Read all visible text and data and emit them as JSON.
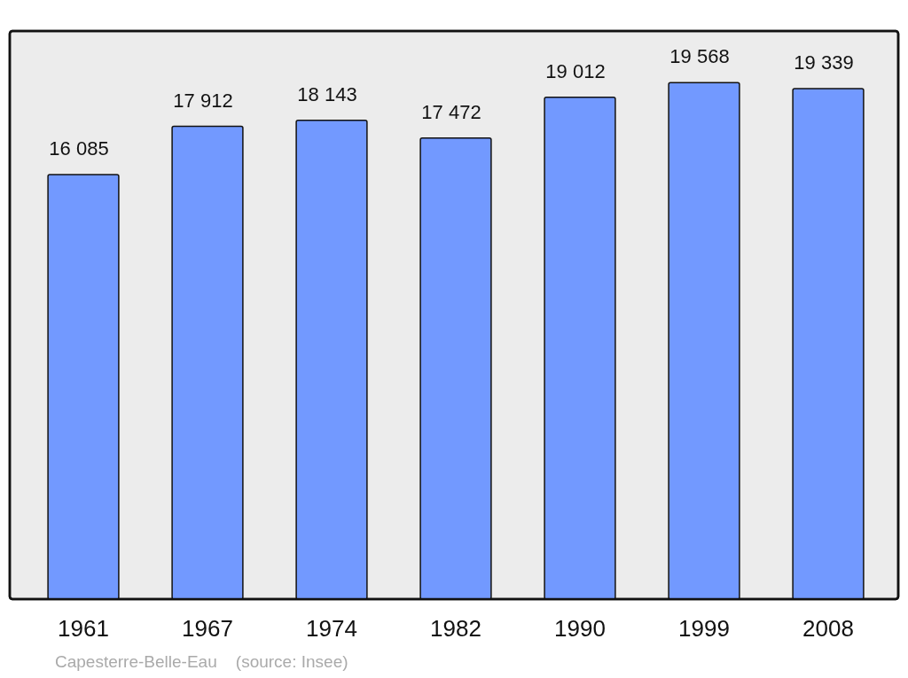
{
  "chart_data": {
    "type": "bar",
    "categories": [
      "1961",
      "1967",
      "1974",
      "1982",
      "1990",
      "1999",
      "2008"
    ],
    "values": [
      16085,
      17912,
      18143,
      17472,
      19012,
      19568,
      19339
    ],
    "value_labels": [
      "16 085",
      "17 912",
      "18 143",
      "17 472",
      "19 012",
      "19 568",
      "19 339"
    ],
    "color": "#7299ff",
    "annotations": [
      "Capesterre-Belle-Eau    (source: Insee)"
    ]
  }
}
